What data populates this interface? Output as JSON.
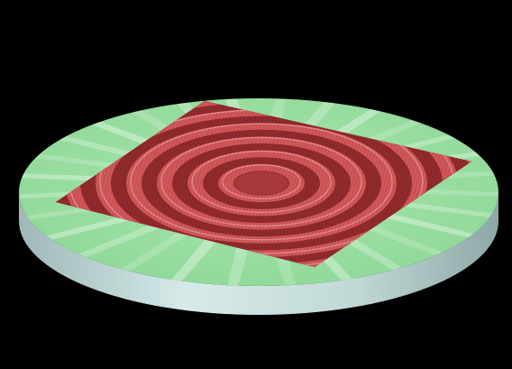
{
  "scene": {
    "background_color": "#000000",
    "disk_top_color": "#92dc9c",
    "disk_edge_color": "#c8dedd",
    "wave_surface_color": "#d0575a",
    "wave_shadow_color": "#8f2a2d",
    "wave_highlight_color": "#f6b8b8",
    "components": [
      "circular-substrate-disk",
      "square-ripple-surface"
    ]
  }
}
